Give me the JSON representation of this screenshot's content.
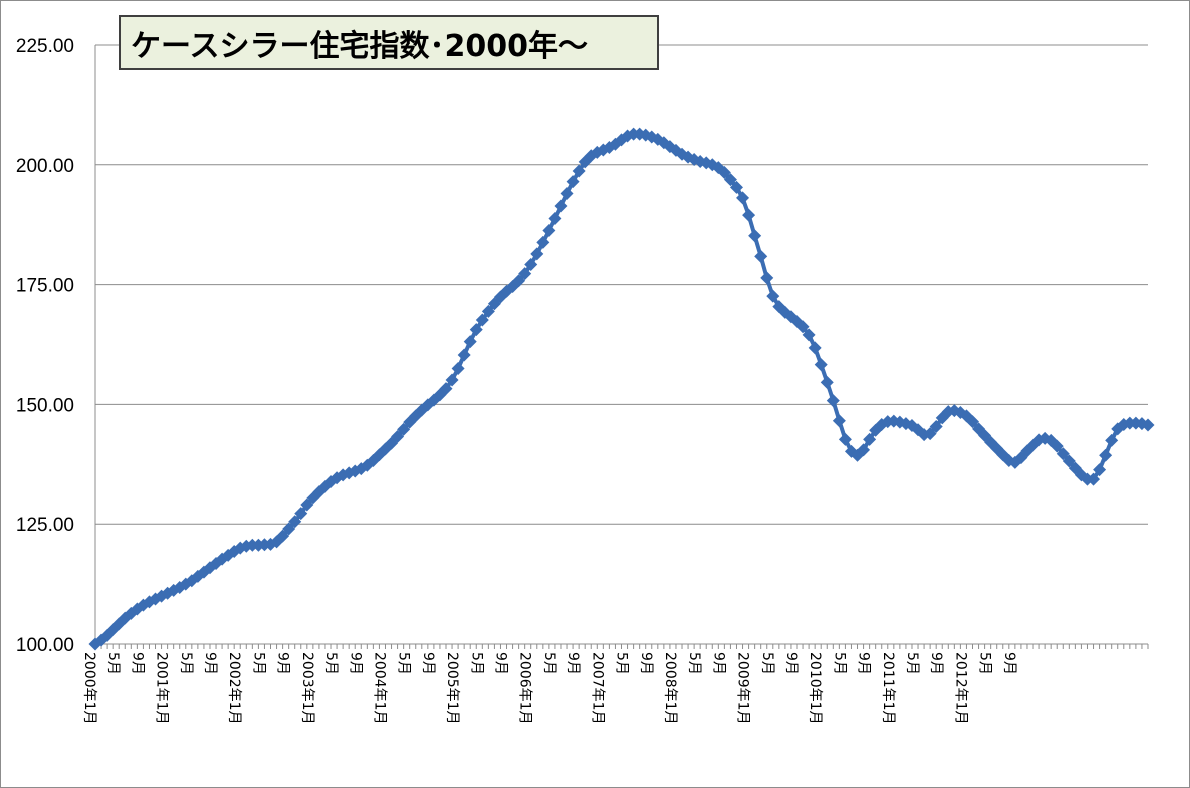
{
  "chart_data": {
    "type": "line",
    "title": "ケースシラー住宅指数･2000年～",
    "xlabel": "",
    "ylabel": "",
    "ylim": [
      100,
      225
    ],
    "yticks": [
      "100.00",
      "125.00",
      "150.00",
      "175.00",
      "200.00",
      "225.00"
    ],
    "grid": true,
    "legend": "none",
    "marker": "diamond",
    "colors": {
      "line": "#3b6db3",
      "marker": "#3b6db3",
      "grid": "#8c8c8c",
      "title_bg": "#ebf1de"
    },
    "x_start": "2000年1月",
    "x_labels": [
      "2000年1月",
      "5月",
      "9月",
      "2001年1月",
      "5月",
      "9月",
      "2002年1月",
      "5月",
      "9月",
      "2003年1月",
      "5月",
      "9月",
      "2004年1月",
      "5月",
      "9月",
      "2005年1月",
      "5月",
      "9月",
      "2006年1月",
      "5月",
      "9月",
      "2007年1月",
      "5月",
      "9月",
      "2008年1月",
      "5月",
      "9月",
      "2009年1月",
      "5月",
      "9月",
      "2010年1月",
      "5月",
      "9月",
      "2011年1月",
      "5月",
      "9月",
      "2012年1月",
      "5月",
      "9月"
    ],
    "series": [
      {
        "values": [
          100,
          100.8,
          101.8,
          103,
          104.2,
          105.4,
          106.4,
          107.3,
          108.1,
          108.8,
          109.4,
          110,
          110.6,
          111.2,
          111.8,
          112.5,
          113.2,
          114.1,
          115,
          115.9,
          116.8,
          117.7,
          118.5,
          119.3,
          120,
          120.4,
          120.6,
          120.6,
          120.7,
          120.8,
          121.3,
          122.5,
          124,
          125.5,
          127.2,
          129,
          130.5,
          131.8,
          132.9,
          133.9,
          134.7,
          135.3,
          135.7,
          136.1,
          136.6,
          137.3,
          138.3,
          139.5,
          140.7,
          141.9,
          143.3,
          144.8,
          146.3,
          147.6,
          148.8,
          149.9,
          150.9,
          152,
          153.3,
          155.1,
          157.5,
          160.3,
          163.1,
          165.6,
          167.6,
          169.4,
          171,
          172.4,
          173.6,
          174.6,
          175.8,
          177.3,
          179.2,
          181.4,
          183.8,
          186.3,
          188.8,
          191.4,
          194,
          196.5,
          198.7,
          200.6,
          201.9,
          202.6,
          203.1,
          203.6,
          204.3,
          205.2,
          206,
          206.4,
          206.4,
          206.2,
          205.8,
          205.3,
          204.6,
          203.8,
          203,
          202.2,
          201.6,
          201.1,
          200.7,
          200.4,
          200,
          199.4,
          198.4,
          196.9,
          195.3,
          193.1,
          189.5,
          185.2,
          180.9,
          176.4,
          172.6,
          170.4,
          169.2,
          168.3,
          167.3,
          166.2,
          164.5,
          161.8,
          158.3,
          154.6,
          150.8,
          146.6,
          142.7,
          140.2,
          139.4,
          140.5,
          142.7,
          144.6,
          145.8,
          146.4,
          146.5,
          146.3,
          146,
          145.6,
          144.7,
          143.7,
          143.9,
          145.4,
          147.2,
          148.5,
          148.7,
          148.3,
          147.6,
          146.4,
          144.9,
          143.5,
          142.1,
          140.8,
          139.5,
          138.3,
          137.9,
          138.9,
          140.3,
          141.5,
          142.6,
          142.9,
          142.5,
          141.3,
          139.7,
          138.2,
          136.7,
          135.3,
          134.4,
          134.4,
          136.4,
          139.4,
          142.5,
          144.9,
          145.8,
          146.1,
          146.1,
          146,
          145.7
        ]
      }
    ]
  }
}
